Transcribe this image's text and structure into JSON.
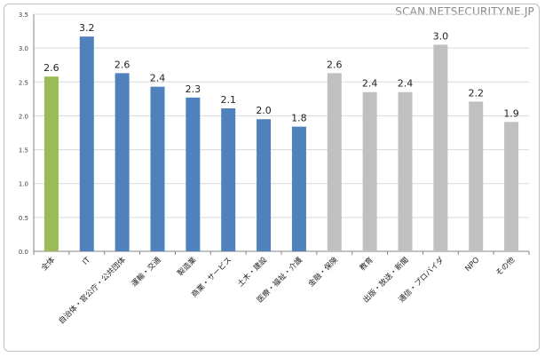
{
  "watermark": "SCAN.NETSECURITY.NE.JP",
  "chart_data": {
    "type": "bar",
    "title": "",
    "xlabel": "",
    "ylabel": "",
    "ylim": [
      0,
      3.5
    ],
    "ytick_step": 0.5,
    "yticks": [
      "0.0",
      "0.5",
      "1.0",
      "1.5",
      "2.0",
      "2.5",
      "3.0",
      "3.5"
    ],
    "grid": true,
    "legend": "none",
    "categories": [
      "全体",
      "IT",
      "自治体・官公庁・公共団体",
      "運輸・交通",
      "製造業",
      "商業・サービス",
      "土木・建設",
      "医療・福祉・介護",
      "金融・保険",
      "教育",
      "出版・放送・新聞",
      "通信・プロバイダ",
      "NPO",
      "その他"
    ],
    "values": [
      2.58,
      3.17,
      2.63,
      2.43,
      2.27,
      2.11,
      1.95,
      1.84,
      2.63,
      2.35,
      2.35,
      3.05,
      2.21,
      1.91
    ],
    "data_labels": [
      "2.6",
      "3.2",
      "2.6",
      "2.4",
      "2.3",
      "2.1",
      "2.0",
      "1.8",
      "2.6",
      "2.4",
      "2.4",
      "3.0",
      "2.2",
      "1.9"
    ],
    "bar_colors": [
      "#9bbb59",
      "#4f81bd",
      "#4f81bd",
      "#4f81bd",
      "#4f81bd",
      "#4f81bd",
      "#4f81bd",
      "#4f81bd",
      "#c0c0c0",
      "#c0c0c0",
      "#c0c0c0",
      "#c0c0c0",
      "#c0c0c0",
      "#c0c0c0"
    ],
    "gridline_color": "#d9d9d9",
    "axis_color": "#868686"
  }
}
